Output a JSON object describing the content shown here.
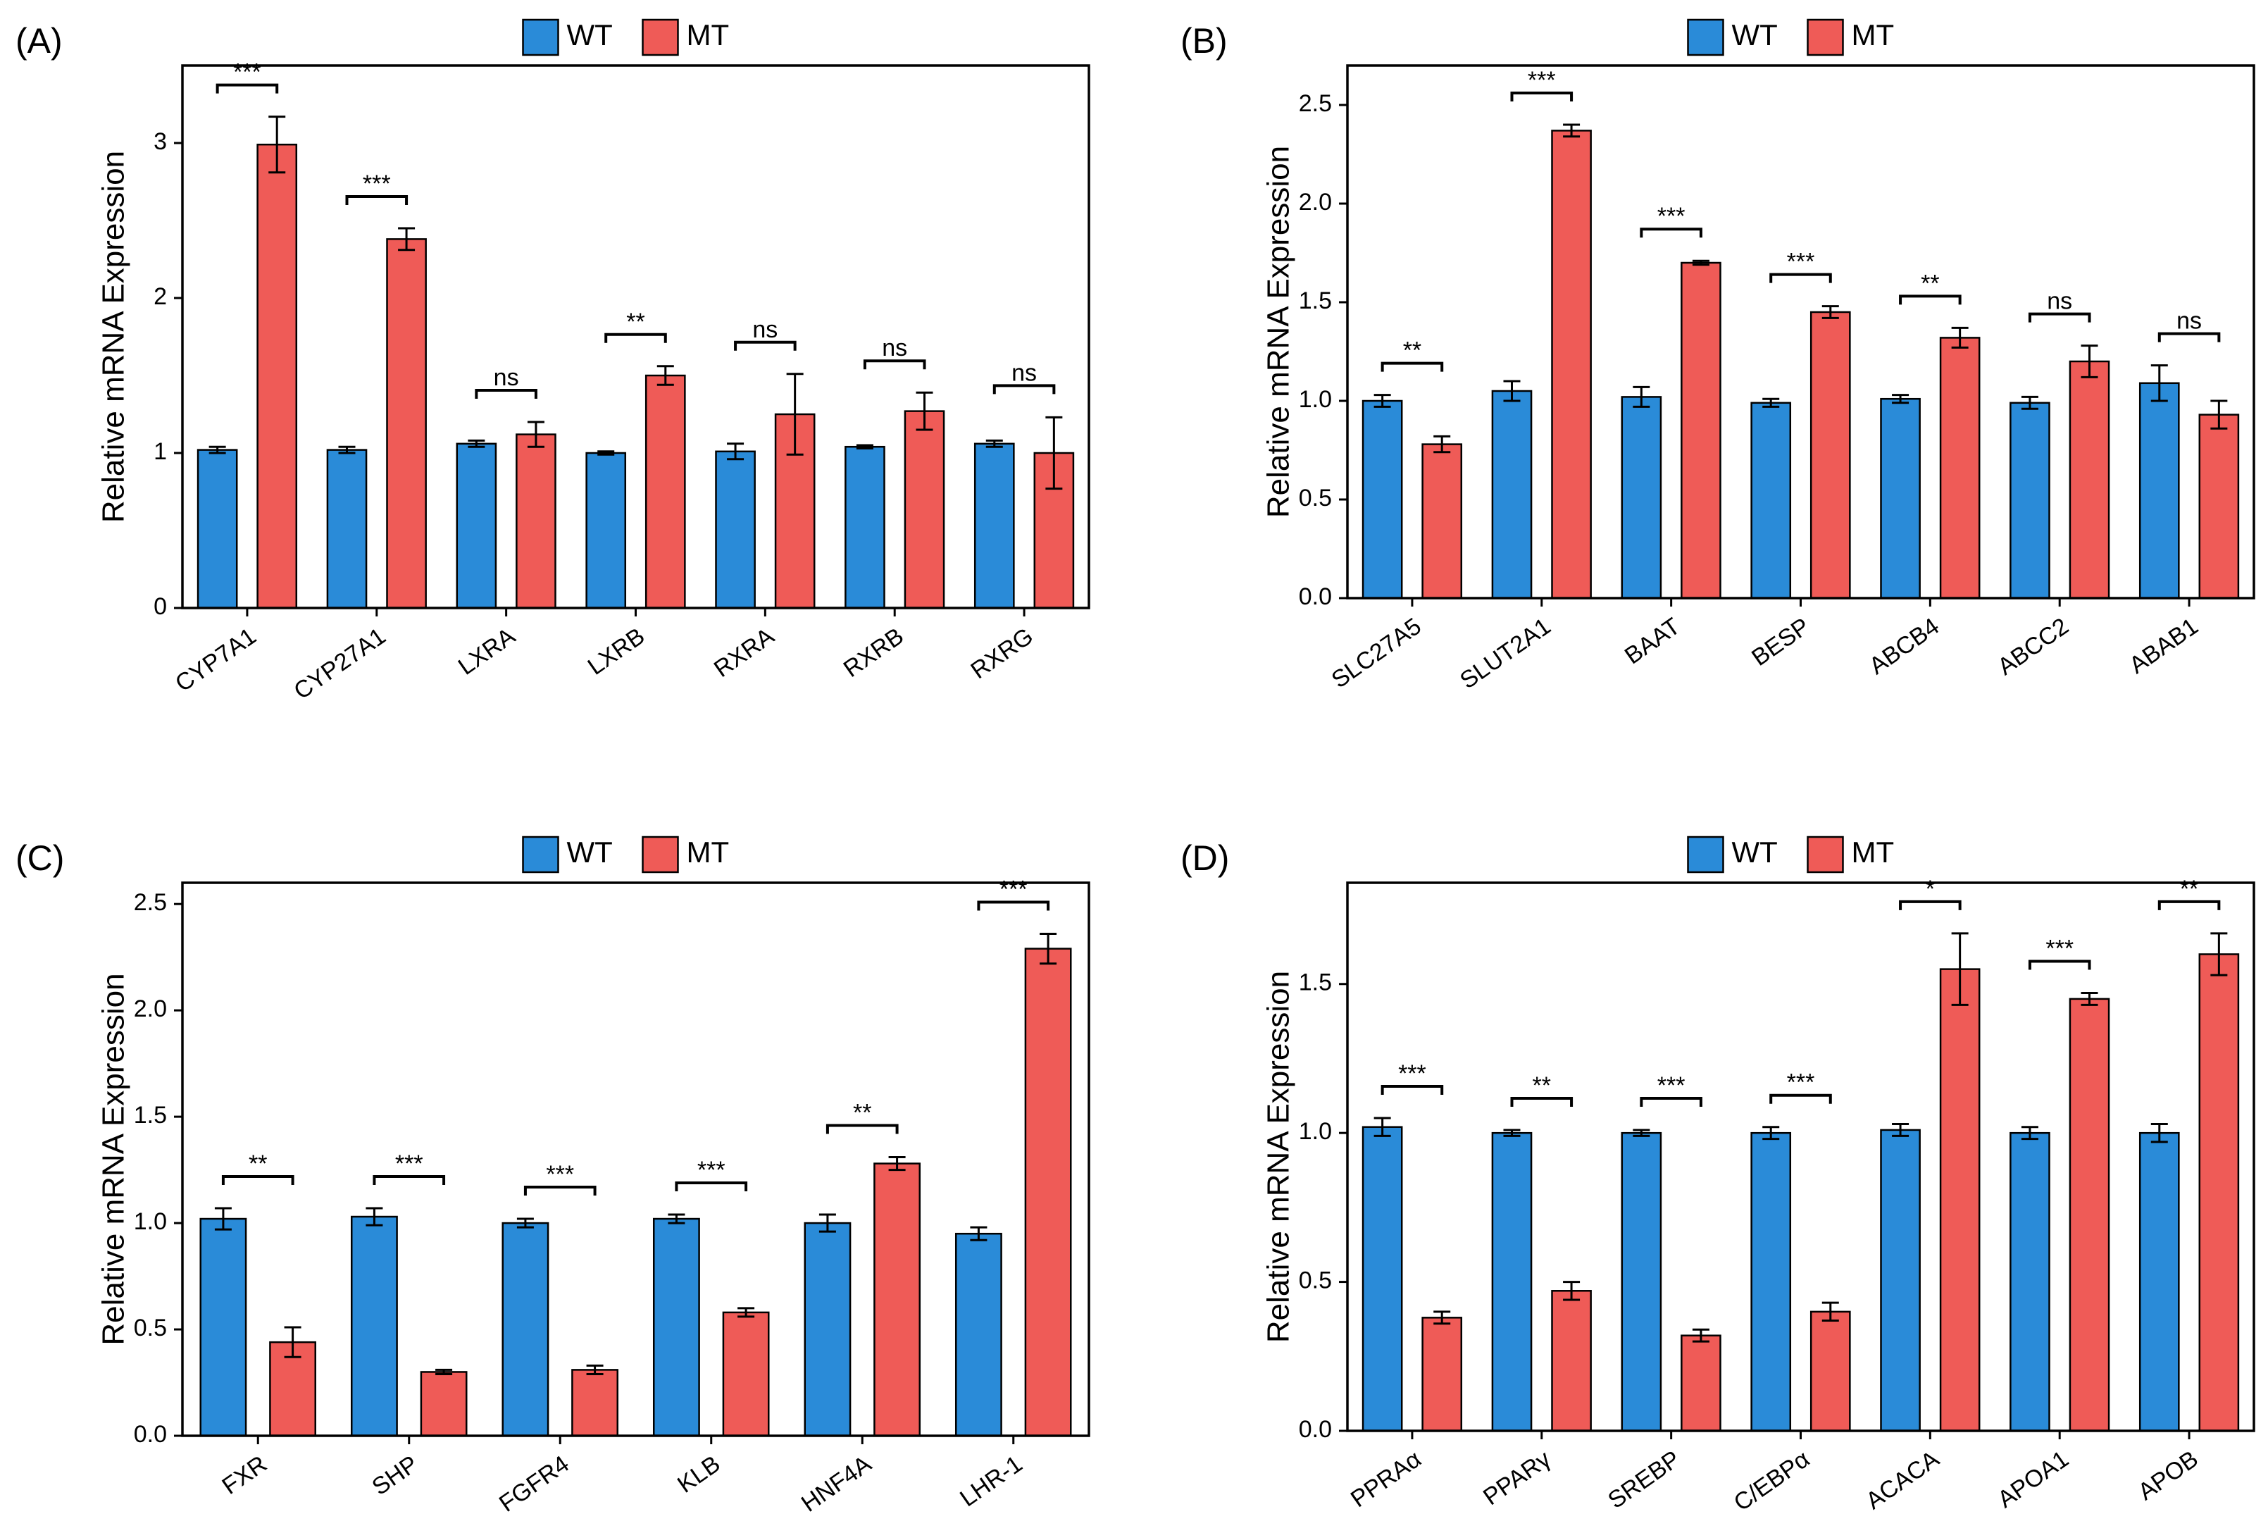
{
  "chart_data": [
    {
      "type": "bar",
      "label": "(A)",
      "ylabel": "Relative mRNA Expression",
      "categories": [
        "CYP7A1",
        "CYP27A1",
        "LXRA",
        "LXRB",
        "RXRA",
        "RXRB",
        "RXRG"
      ],
      "series": [
        {
          "name": "WT",
          "color": "#2a8bd8",
          "values": [
            1.02,
            1.02,
            1.06,
            1.0,
            1.01,
            1.04,
            1.06
          ],
          "errors": [
            0.02,
            0.02,
            0.02,
            0.01,
            0.05,
            0.01,
            0.02
          ]
        },
        {
          "name": "MT",
          "color": "#ef5b57",
          "values": [
            2.99,
            2.38,
            1.12,
            1.5,
            1.25,
            1.27,
            1.0
          ],
          "errors": [
            0.18,
            0.07,
            0.08,
            0.06,
            0.26,
            0.12,
            0.23
          ]
        }
      ],
      "annotations": [
        "***",
        "***",
        "ns",
        "**",
        "ns",
        "ns",
        "ns"
      ],
      "ylim": [
        0,
        3.5
      ],
      "yticks": [
        0,
        1,
        2,
        3
      ],
      "legend": "top"
    },
    {
      "type": "bar",
      "label": "(B)",
      "ylabel": "Relative mRNA Expression",
      "categories": [
        "SLC27A5",
        "SLUT2A1",
        "BAAT",
        "BESP",
        "ABCB4",
        "ABCC2",
        "ABAB1"
      ],
      "series": [
        {
          "name": "WT",
          "color": "#2a8bd8",
          "values": [
            1.0,
            1.05,
            1.02,
            0.99,
            1.01,
            0.99,
            1.09
          ],
          "errors": [
            0.03,
            0.05,
            0.05,
            0.02,
            0.02,
            0.03,
            0.09
          ]
        },
        {
          "name": "MT",
          "color": "#ef5b57",
          "values": [
            0.78,
            2.37,
            1.7,
            1.45,
            1.32,
            1.2,
            0.93
          ],
          "errors": [
            0.04,
            0.03,
            0.01,
            0.03,
            0.05,
            0.08,
            0.07
          ]
        }
      ],
      "annotations": [
        "**",
        "***",
        "***",
        "***",
        "**",
        "ns",
        "ns"
      ],
      "ylim": [
        0,
        2.7
      ],
      "yticks": [
        {
          "value": 0,
          "label": "0.0"
        },
        0.5,
        {
          "value": 1,
          "label": "1.0"
        },
        1.5,
        {
          "value": 2,
          "label": "2.0"
        },
        2.5
      ],
      "legend": "top"
    },
    {
      "type": "bar",
      "label": "(C)",
      "ylabel": "Relative mRNA Expression",
      "categories": [
        "FXR",
        "SHP",
        "FGFR4",
        "KLB",
        "HNF4A",
        "LHR-1"
      ],
      "series": [
        {
          "name": "WT",
          "color": "#2a8bd8",
          "values": [
            1.02,
            1.03,
            1.0,
            1.02,
            1.0,
            0.95
          ],
          "errors": [
            0.05,
            0.04,
            0.02,
            0.02,
            0.04,
            0.03
          ]
        },
        {
          "name": "MT",
          "color": "#ef5b57",
          "values": [
            0.44,
            0.3,
            0.31,
            0.58,
            1.28,
            2.29
          ],
          "errors": [
            0.07,
            0.01,
            0.02,
            0.02,
            0.03,
            0.07
          ]
        }
      ],
      "annotations": [
        "**",
        "***",
        "***",
        "***",
        "**",
        "***"
      ],
      "ylim": [
        0,
        2.6
      ],
      "yticks": [
        {
          "value": 0,
          "label": "0.0"
        },
        0.5,
        {
          "value": 1,
          "label": "1.0"
        },
        1.5,
        {
          "value": 2,
          "label": "2.0"
        },
        2.5
      ],
      "legend": "top"
    },
    {
      "type": "bar",
      "label": "(D)",
      "ylabel": "Relative mRNA Expression",
      "categories": [
        "PPRAα",
        "PPARγ",
        "SREBP",
        "C/EBPα",
        "ACACA",
        "APOA1",
        "APOB"
      ],
      "series": [
        {
          "name": "WT",
          "color": "#2a8bd8",
          "values": [
            1.02,
            1.0,
            1.0,
            1.0,
            1.01,
            1.0,
            1.0
          ],
          "errors": [
            0.03,
            0.01,
            0.01,
            0.02,
            0.02,
            0.02,
            0.03
          ]
        },
        {
          "name": "MT",
          "color": "#ef5b57",
          "values": [
            0.38,
            0.47,
            0.32,
            0.4,
            1.55,
            1.45,
            1.6
          ],
          "errors": [
            0.02,
            0.03,
            0.02,
            0.03,
            0.12,
            0.02,
            0.07
          ]
        }
      ],
      "annotations": [
        "***",
        "**",
        "***",
        "***",
        "*",
        "***",
        "**"
      ],
      "ylim": [
        0,
        1.84
      ],
      "yticks": [
        {
          "value": 0,
          "label": "0.0"
        },
        0.5,
        {
          "value": 1,
          "label": "1.0"
        },
        1.5
      ],
      "legend": "top"
    }
  ]
}
